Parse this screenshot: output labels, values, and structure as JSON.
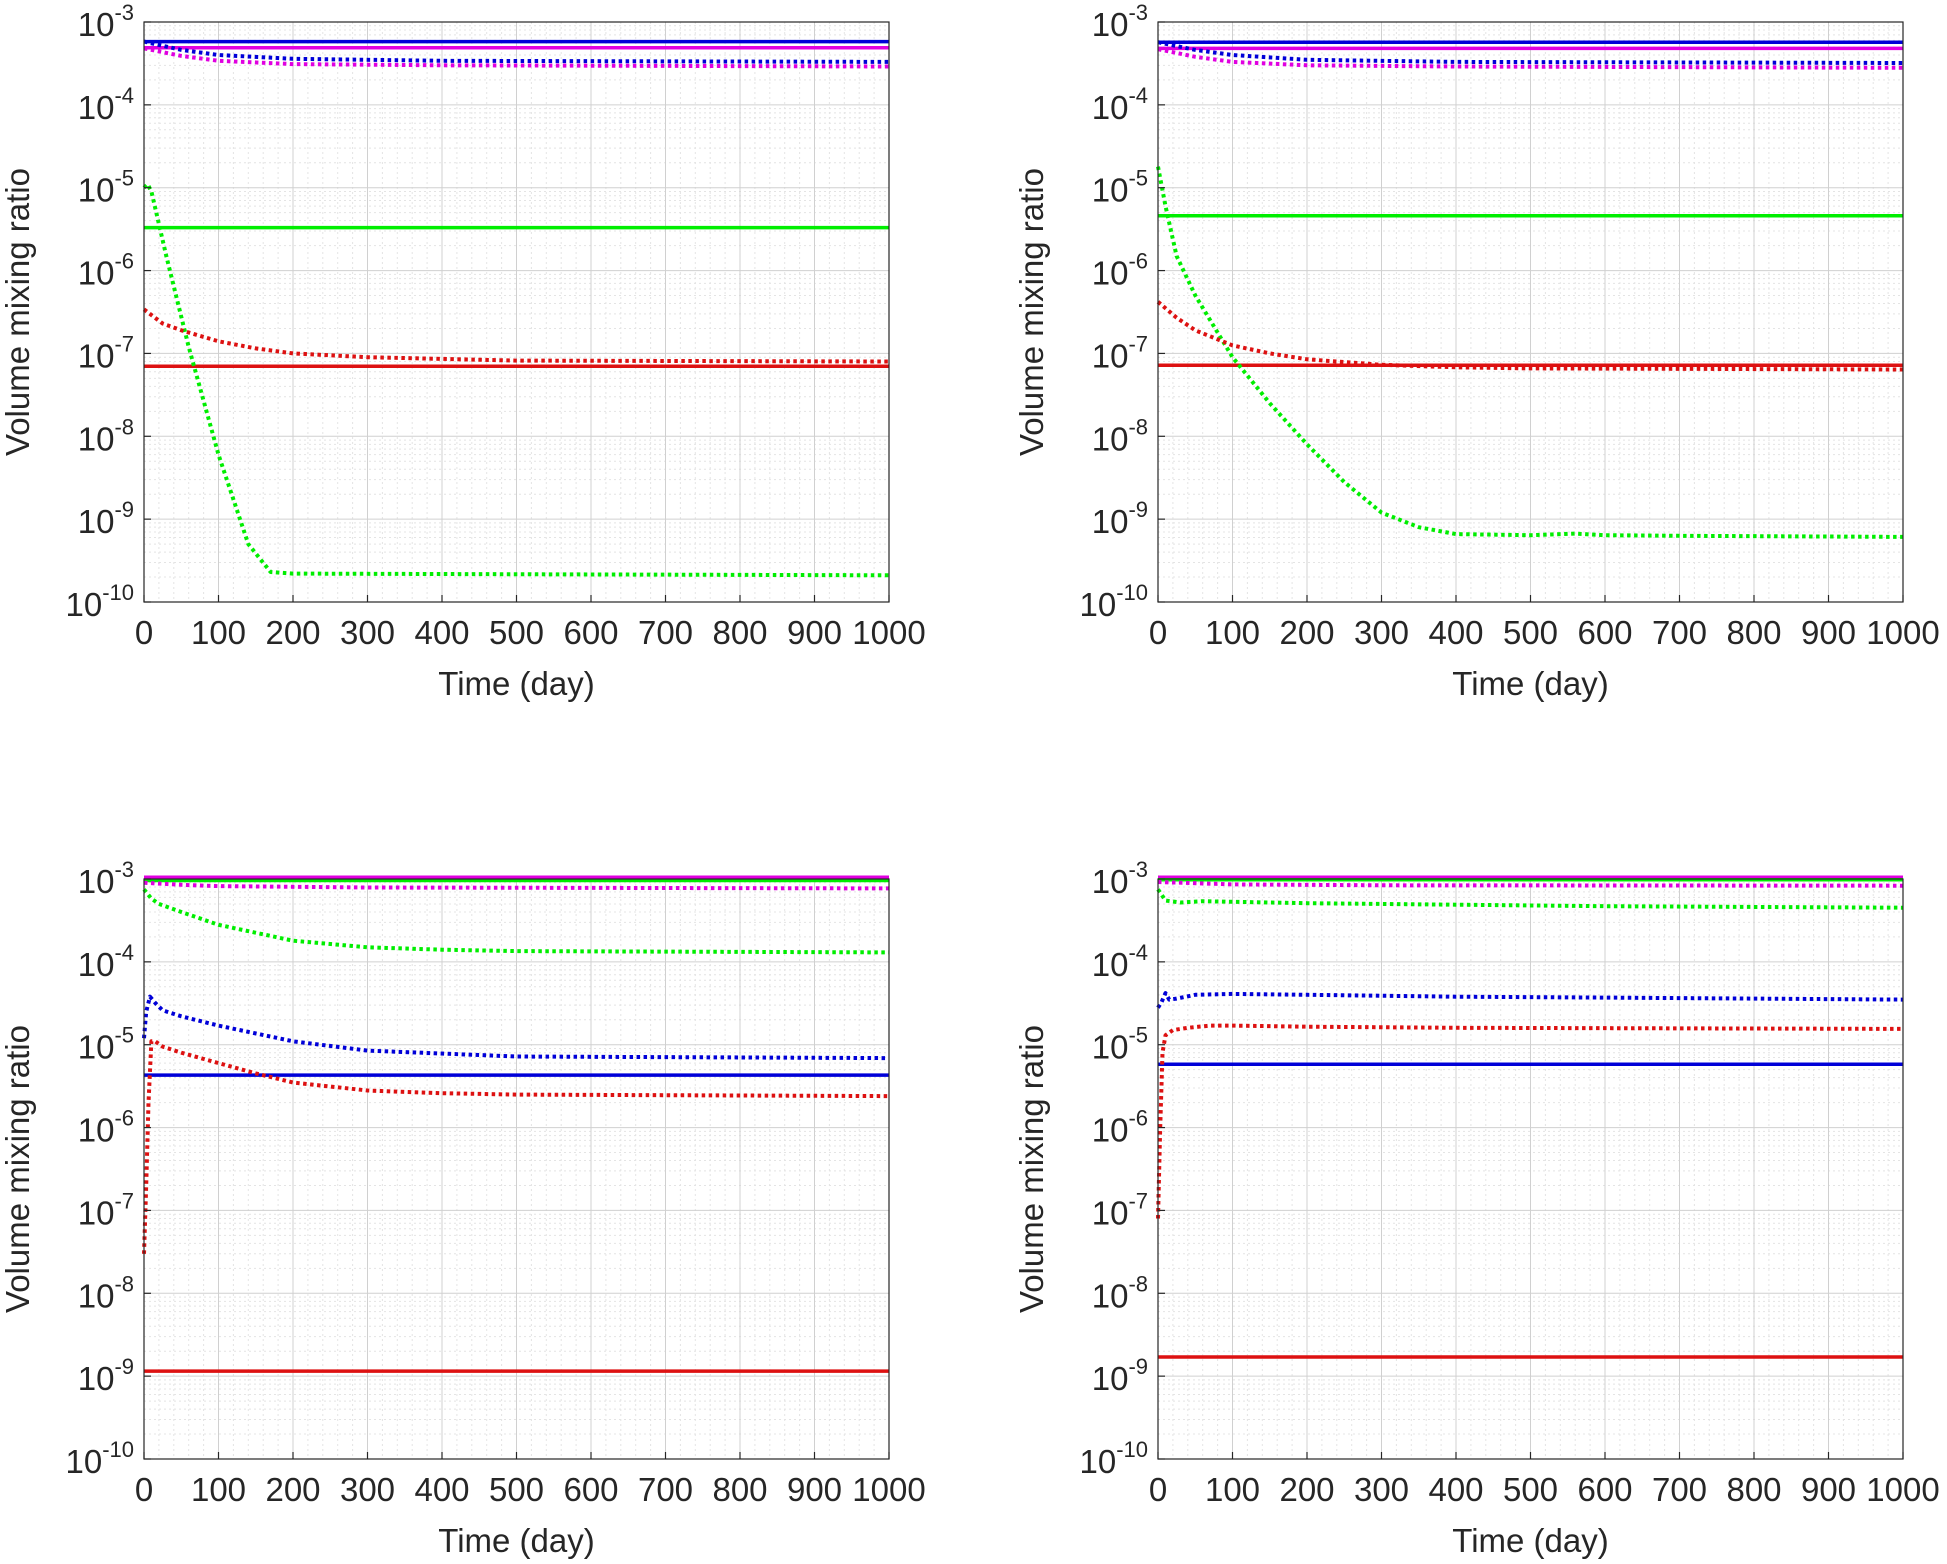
{
  "figure": {
    "layout": "2x2 grid of line plots"
  },
  "chart_data": [
    {
      "type": "line",
      "panel": "top-left",
      "xlabel": "Time (day)",
      "ylabel": "Volume mixing ratio",
      "xlim": [
        0,
        1000
      ],
      "ylim": [
        1e-10,
        0.001
      ],
      "yscale": "log",
      "xticks": [
        "0",
        "100",
        "200",
        "300",
        "400",
        "500",
        "600",
        "700",
        "800",
        "900",
        "1000"
      ],
      "yticks": [
        {
          "base": "10",
          "exp": "-10"
        },
        {
          "base": "10",
          "exp": "-9"
        },
        {
          "base": "10",
          "exp": "-8"
        },
        {
          "base": "10",
          "exp": "-7"
        },
        {
          "base": "10",
          "exp": "-6"
        },
        {
          "base": "10",
          "exp": "-5"
        },
        {
          "base": "10",
          "exp": "-4"
        },
        {
          "base": "10",
          "exp": "-3"
        }
      ],
      "grid": true,
      "minor_grid": true,
      "series": [
        {
          "color": "#0000d8",
          "style": "solid",
          "x": [
            0,
            1000
          ],
          "y": [
            0.00058,
            0.00058
          ]
        },
        {
          "color": "#e000e0",
          "style": "solid",
          "x": [
            0,
            1000
          ],
          "y": [
            0.00049,
            0.00049
          ]
        },
        {
          "color": "#00ee00",
          "style": "solid",
          "x": [
            0,
            1000
          ],
          "y": [
            3.3e-06,
            3.3e-06
          ]
        },
        {
          "color": "#dd1111",
          "style": "solid",
          "x": [
            0,
            1000
          ],
          "y": [
            7e-08,
            7e-08
          ]
        },
        {
          "color": "#0000d8",
          "style": "dotted",
          "x": [
            0,
            50,
            100,
            200,
            400,
            1000
          ],
          "y": [
            0.00058,
            0.00046,
            0.0004,
            0.00036,
            0.00034,
            0.00033
          ]
        },
        {
          "color": "#e000e0",
          "style": "dotted",
          "x": [
            0,
            50,
            100,
            200,
            400,
            1000
          ],
          "y": [
            0.00048,
            0.00039,
            0.00034,
            0.00031,
            0.0003,
            0.00029
          ]
        },
        {
          "color": "#00ee00",
          "style": "dotted",
          "x": [
            0,
            5,
            10,
            30,
            60,
            100,
            140,
            170,
            200,
            1000
          ],
          "y": [
            1e-05,
            1.1e-05,
            9e-06,
            1.5e-06,
            1.2e-07,
            6e-09,
            5e-10,
            2.3e-10,
            2.2e-10,
            2.1e-10
          ]
        },
        {
          "color": "#dd1111",
          "style": "dotted",
          "x": [
            0,
            25,
            50,
            100,
            150,
            200,
            300,
            500,
            1000
          ],
          "y": [
            3.4e-07,
            2.3e-07,
            1.9e-07,
            1.4e-07,
            1.15e-07,
            1e-07,
            9e-08,
            8.2e-08,
            8e-08
          ]
        }
      ]
    },
    {
      "type": "line",
      "panel": "top-right",
      "xlabel": "Time (day)",
      "ylabel": "Volume mixing ratio",
      "xlim": [
        0,
        1000
      ],
      "ylim": [
        1e-10,
        0.001
      ],
      "yscale": "log",
      "xticks": [
        "0",
        "100",
        "200",
        "300",
        "400",
        "500",
        "600",
        "700",
        "800",
        "900",
        "1000"
      ],
      "yticks": [
        {
          "base": "10",
          "exp": "-10"
        },
        {
          "base": "10",
          "exp": "-9"
        },
        {
          "base": "10",
          "exp": "-8"
        },
        {
          "base": "10",
          "exp": "-7"
        },
        {
          "base": "10",
          "exp": "-6"
        },
        {
          "base": "10",
          "exp": "-5"
        },
        {
          "base": "10",
          "exp": "-4"
        },
        {
          "base": "10",
          "exp": "-3"
        }
      ],
      "grid": true,
      "minor_grid": true,
      "series": [
        {
          "color": "#0000d8",
          "style": "solid",
          "x": [
            0,
            1000
          ],
          "y": [
            0.00057,
            0.00057
          ]
        },
        {
          "color": "#e000e0",
          "style": "solid",
          "x": [
            0,
            1000
          ],
          "y": [
            0.00048,
            0.00048
          ]
        },
        {
          "color": "#00ee00",
          "style": "solid",
          "x": [
            0,
            1000
          ],
          "y": [
            4.6e-06,
            4.6e-06
          ]
        },
        {
          "color": "#dd1111",
          "style": "solid",
          "x": [
            0,
            1000
          ],
          "y": [
            7.2e-08,
            7.2e-08
          ]
        },
        {
          "color": "#0000d8",
          "style": "dotted",
          "x": [
            0,
            50,
            100,
            200,
            400,
            1000
          ],
          "y": [
            0.00057,
            0.00046,
            0.0004,
            0.00035,
            0.00033,
            0.00032
          ]
        },
        {
          "color": "#e000e0",
          "style": "dotted",
          "x": [
            0,
            50,
            100,
            200,
            400,
            1000
          ],
          "y": [
            0.00047,
            0.00038,
            0.00033,
            0.0003,
            0.00029,
            0.00028
          ]
        },
        {
          "color": "#00ee00",
          "style": "dotted",
          "x": [
            0,
            10,
            25,
            50,
            100,
            150,
            200,
            250,
            300,
            350,
            400,
            500,
            560,
            600,
            700,
            1000
          ],
          "y": [
            1.8e-05,
            6e-06,
            1.5e-06,
            5e-07,
            9e-08,
            2.5e-08,
            8e-09,
            2.8e-09,
            1.2e-09,
            8e-10,
            6.6e-10,
            6.4e-10,
            6.7e-10,
            6.4e-10,
            6.3e-10,
            6.1e-10
          ]
        },
        {
          "color": "#dd1111",
          "style": "dotted",
          "x": [
            0,
            25,
            50,
            100,
            150,
            200,
            300,
            400,
            500,
            1000
          ],
          "y": [
            4.2e-07,
            2.7e-07,
            1.9e-07,
            1.25e-07,
            1e-07,
            8.5e-08,
            7.3e-08,
            6.8e-08,
            6.6e-08,
            6.4e-08
          ]
        }
      ]
    },
    {
      "type": "line",
      "panel": "bottom-left",
      "xlabel": "Time (day)",
      "ylabel": "Volume mixing ratio",
      "xlim": [
        0,
        1000
      ],
      "ylim": [
        1e-10,
        0.001
      ],
      "yscale": "log",
      "xticks": [
        "0",
        "100",
        "200",
        "300",
        "400",
        "500",
        "600",
        "700",
        "800",
        "900",
        "1000"
      ],
      "yticks": [
        {
          "base": "10",
          "exp": "-10"
        },
        {
          "base": "10",
          "exp": "-9"
        },
        {
          "base": "10",
          "exp": "-8"
        },
        {
          "base": "10",
          "exp": "-7"
        },
        {
          "base": "10",
          "exp": "-6"
        },
        {
          "base": "10",
          "exp": "-5"
        },
        {
          "base": "10",
          "exp": "-4"
        },
        {
          "base": "10",
          "exp": "-3"
        }
      ],
      "grid": true,
      "minor_grid": true,
      "series": [
        {
          "color": "#e000e0",
          "style": "solid",
          "x": [
            0,
            1000
          ],
          "y": [
            0.00105,
            0.00105
          ]
        },
        {
          "color": "#00ee00",
          "style": "solid",
          "x": [
            0,
            1000
          ],
          "y": [
            0.00096,
            0.00096
          ]
        },
        {
          "color": "#0000d8",
          "style": "solid",
          "x": [
            0,
            1000
          ],
          "y": [
            4.3e-06,
            4.3e-06
          ]
        },
        {
          "color": "#dd1111",
          "style": "solid",
          "x": [
            0,
            1000
          ],
          "y": [
            1.15e-09,
            1.15e-09
          ]
        },
        {
          "color": "#e000e0",
          "style": "dotted",
          "x": [
            0,
            50,
            100,
            300,
            1000
          ],
          "y": [
            0.0009,
            0.00085,
            0.00082,
            0.00079,
            0.00077
          ]
        },
        {
          "color": "#00ee00",
          "style": "dotted",
          "x": [
            0,
            10,
            20,
            50,
            100,
            200,
            300,
            400,
            500,
            1000
          ],
          "y": [
            0.00075,
            0.00058,
            0.0005,
            0.0004,
            0.00028,
            0.00018,
            0.00015,
            0.00014,
            0.000135,
            0.00013
          ]
        },
        {
          "color": "#0000d8",
          "style": "dotted",
          "x": [
            0,
            3,
            8,
            15,
            25,
            50,
            100,
            200,
            300,
            500,
            1000
          ],
          "y": [
            1.2e-05,
            2.5e-05,
            3.8e-05,
            3.2e-05,
            2.6e-05,
            2.2e-05,
            1.7e-05,
            1.1e-05,
            8.5e-06,
            7.2e-06,
            6.9e-06
          ]
        },
        {
          "color": "#dd1111",
          "style": "dotted",
          "x": [
            0,
            3,
            6,
            10,
            15,
            25,
            50,
            100,
            150,
            200,
            300,
            400,
            500,
            1000
          ],
          "y": [
            3e-08,
            2e-07,
            2e-06,
            1.1e-05,
            1.1e-05,
            9.5e-06,
            8e-06,
            6e-06,
            4.5e-06,
            3.5e-06,
            2.8e-06,
            2.6e-06,
            2.5e-06,
            2.4e-06
          ]
        }
      ]
    },
    {
      "type": "line",
      "panel": "bottom-right",
      "xlabel": "Time (day)",
      "ylabel": "Volume mixing ratio",
      "xlim": [
        0,
        1000
      ],
      "ylim": [
        1e-10,
        0.001
      ],
      "yscale": "log",
      "xticks": [
        "0",
        "100",
        "200",
        "300",
        "400",
        "500",
        "600",
        "700",
        "800",
        "900",
        "1000"
      ],
      "yticks": [
        {
          "base": "10",
          "exp": "-10"
        },
        {
          "base": "10",
          "exp": "-9"
        },
        {
          "base": "10",
          "exp": "-8"
        },
        {
          "base": "10",
          "exp": "-7"
        },
        {
          "base": "10",
          "exp": "-6"
        },
        {
          "base": "10",
          "exp": "-5"
        },
        {
          "base": "10",
          "exp": "-4"
        },
        {
          "base": "10",
          "exp": "-3"
        }
      ],
      "grid": true,
      "minor_grid": true,
      "series": [
        {
          "color": "#e000e0",
          "style": "solid",
          "x": [
            0,
            1000
          ],
          "y": [
            0.00105,
            0.00105
          ]
        },
        {
          "color": "#00ee00",
          "style": "solid",
          "x": [
            0,
            1000
          ],
          "y": [
            0.00098,
            0.00098
          ]
        },
        {
          "color": "#0000d8",
          "style": "solid",
          "x": [
            0,
            1000
          ],
          "y": [
            5.8e-06,
            5.8e-06
          ]
        },
        {
          "color": "#dd1111",
          "style": "solid",
          "x": [
            0,
            1000
          ],
          "y": [
            1.7e-09,
            1.7e-09
          ]
        },
        {
          "color": "#e000e0",
          "style": "dotted",
          "x": [
            0,
            100,
            300,
            1000
          ],
          "y": [
            0.00092,
            0.00086,
            0.00084,
            0.00083
          ]
        },
        {
          "color": "#00ee00",
          "style": "dotted",
          "x": [
            0,
            10,
            30,
            60,
            100,
            200,
            400,
            600,
            1000
          ],
          "y": [
            0.00075,
            0.00055,
            0.00052,
            0.00054,
            0.00053,
            0.00051,
            0.00049,
            0.00047,
            0.00045
          ]
        },
        {
          "color": "#0000d8",
          "style": "dotted",
          "x": [
            0,
            5,
            10,
            15,
            25,
            50,
            100,
            200,
            400,
            600,
            1000
          ],
          "y": [
            2.8e-05,
            3.3e-05,
            4.2e-05,
            3.5e-05,
            3.6e-05,
            4e-05,
            4.1e-05,
            4e-05,
            3.8e-05,
            3.7e-05,
            3.5e-05
          ]
        },
        {
          "color": "#dd1111",
          "style": "dotted",
          "x": [
            0,
            3,
            6,
            10,
            20,
            40,
            70,
            100,
            200,
            400,
            1000
          ],
          "y": [
            8e-08,
            1e-06,
            8e-06,
            1.3e-05,
            1.5e-05,
            1.6e-05,
            1.7e-05,
            1.7e-05,
            1.65e-05,
            1.6e-05,
            1.55e-05
          ]
        }
      ]
    }
  ]
}
